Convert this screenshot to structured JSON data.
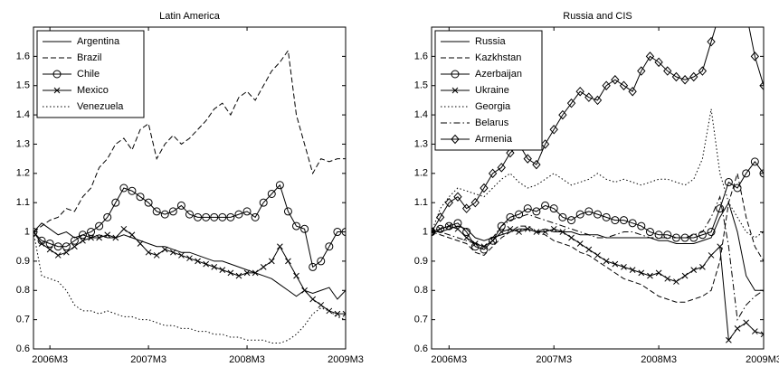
{
  "chart_data": [
    {
      "type": "line",
      "title": "Latin America",
      "categories": [
        null,
        null,
        "2006M3",
        null,
        null,
        null,
        null,
        null,
        null,
        null,
        null,
        null,
        null,
        null,
        "2007M3",
        null,
        null,
        null,
        null,
        null,
        null,
        null,
        null,
        null,
        null,
        null,
        "2008M3",
        null,
        null,
        null,
        null,
        null,
        null,
        null,
        null,
        null,
        null,
        null,
        "2009M3"
      ],
      "ylim": [
        0.6,
        1.7
      ],
      "yticks": [
        0.6,
        0.7,
        0.8,
        0.9,
        1,
        1.1,
        1.2,
        1.3,
        1.4,
        1.5,
        1.6
      ],
      "legend": "upper-left",
      "series": [
        {
          "name": "Argentina",
          "color": "#000000",
          "dash": "solid",
          "marker": "none",
          "values": [
            1.0,
            1.03,
            1.01,
            0.99,
            1.0,
            0.98,
            0.99,
            0.98,
            0.99,
            0.98,
            0.98,
            0.99,
            0.98,
            0.97,
            0.96,
            0.95,
            0.95,
            0.94,
            0.93,
            0.93,
            0.92,
            0.91,
            0.9,
            0.9,
            0.89,
            0.88,
            0.87,
            0.86,
            0.85,
            0.84,
            0.82,
            0.8,
            0.78,
            0.8,
            0.79,
            0.8,
            0.81,
            0.77,
            0.8
          ]
        },
        {
          "name": "Brazil",
          "color": "#000000",
          "dash": "dashed",
          "marker": "none",
          "values": [
            1.0,
            1.02,
            1.04,
            1.05,
            1.08,
            1.07,
            1.12,
            1.15,
            1.22,
            1.25,
            1.3,
            1.32,
            1.28,
            1.35,
            1.37,
            1.25,
            1.3,
            1.33,
            1.3,
            1.32,
            1.35,
            1.38,
            1.42,
            1.44,
            1.4,
            1.46,
            1.48,
            1.45,
            1.5,
            1.55,
            1.58,
            1.62,
            1.4,
            1.3,
            1.2,
            1.25,
            1.24,
            1.25,
            1.25
          ]
        },
        {
          "name": "Chile",
          "color": "#000000",
          "dash": "solid",
          "marker": "circle",
          "values": [
            1.0,
            0.97,
            0.96,
            0.95,
            0.95,
            0.97,
            0.99,
            1.0,
            1.02,
            1.05,
            1.1,
            1.15,
            1.14,
            1.12,
            1.1,
            1.07,
            1.06,
            1.07,
            1.09,
            1.06,
            1.05,
            1.05,
            1.05,
            1.05,
            1.05,
            1.06,
            1.07,
            1.05,
            1.1,
            1.13,
            1.16,
            1.07,
            1.02,
            1.01,
            0.88,
            0.9,
            0.95,
            1.0,
            1.0
          ]
        },
        {
          "name": "Mexico",
          "color": "#000000",
          "dash": "solid",
          "marker": "x",
          "values": [
            1.0,
            0.96,
            0.94,
            0.92,
            0.93,
            0.95,
            0.97,
            0.98,
            0.98,
            0.99,
            0.98,
            1.01,
            0.99,
            0.96,
            0.93,
            0.92,
            0.94,
            0.93,
            0.92,
            0.91,
            0.9,
            0.89,
            0.88,
            0.87,
            0.86,
            0.85,
            0.86,
            0.86,
            0.88,
            0.9,
            0.95,
            0.9,
            0.85,
            0.8,
            0.77,
            0.75,
            0.73,
            0.72,
            0.72
          ]
        },
        {
          "name": "Venezuela",
          "color": "#000000",
          "dash": "dotted",
          "marker": "none",
          "values": [
            1.0,
            0.85,
            0.84,
            0.83,
            0.8,
            0.75,
            0.73,
            0.73,
            0.72,
            0.73,
            0.72,
            0.71,
            0.71,
            0.7,
            0.7,
            0.69,
            0.68,
            0.68,
            0.67,
            0.67,
            0.66,
            0.66,
            0.65,
            0.65,
            0.64,
            0.64,
            0.63,
            0.63,
            0.63,
            0.62,
            0.62,
            0.63,
            0.65,
            0.68,
            0.72,
            0.74,
            0.73,
            0.71,
            0.7
          ]
        }
      ]
    },
    {
      "type": "line",
      "title": "Russia and CIS",
      "categories": [
        null,
        null,
        "2006M3",
        null,
        null,
        null,
        null,
        null,
        null,
        null,
        null,
        null,
        null,
        null,
        "2007M3",
        null,
        null,
        null,
        null,
        null,
        null,
        null,
        null,
        null,
        null,
        null,
        "2008M3",
        null,
        null,
        null,
        null,
        null,
        null,
        null,
        null,
        null,
        null,
        null,
        "2009M3"
      ],
      "ylim": [
        0.6,
        1.7
      ],
      "yticks": [
        0.6,
        0.7,
        0.8,
        0.9,
        1,
        1.1,
        1.2,
        1.3,
        1.4,
        1.5,
        1.6
      ],
      "legend": "upper-left",
      "series": [
        {
          "name": "Russia",
          "color": "#000000",
          "dash": "solid",
          "marker": "none",
          "values": [
            1.0,
            1.0,
            1.01,
            1.02,
            1.01,
            0.98,
            0.97,
            0.98,
            0.99,
            1.0,
            1.01,
            1.01,
            1.0,
            1.01,
            1.0,
            1.0,
            1.0,
            0.99,
            0.99,
            0.99,
            0.98,
            0.98,
            0.98,
            0.98,
            0.98,
            0.98,
            0.97,
            0.97,
            0.96,
            0.96,
            0.96,
            0.97,
            0.98,
            1.05,
            1.1,
            1.0,
            0.85,
            0.8,
            0.8
          ]
        },
        {
          "name": "Kazkhstan",
          "color": "#000000",
          "dash": "dashed",
          "marker": "none",
          "values": [
            1.0,
            0.99,
            0.98,
            0.97,
            0.96,
            0.93,
            0.92,
            0.95,
            0.98,
            1.0,
            1.02,
            1.02,
            1.0,
            0.99,
            0.97,
            0.96,
            0.95,
            0.93,
            0.92,
            0.9,
            0.88,
            0.86,
            0.84,
            0.83,
            0.82,
            0.8,
            0.78,
            0.77,
            0.76,
            0.76,
            0.77,
            0.78,
            0.8,
            0.9,
            1.1,
            1.2,
            1.05,
            0.95,
            0.9
          ]
        },
        {
          "name": "Azerbaijan",
          "color": "#000000",
          "dash": "solid",
          "marker": "circle",
          "values": [
            1.0,
            1.01,
            1.02,
            1.03,
            1.0,
            0.95,
            0.94,
            0.97,
            1.02,
            1.05,
            1.06,
            1.08,
            1.07,
            1.09,
            1.08,
            1.05,
            1.04,
            1.06,
            1.07,
            1.06,
            1.05,
            1.04,
            1.04,
            1.03,
            1.02,
            1.0,
            0.99,
            0.99,
            0.98,
            0.98,
            0.98,
            0.99,
            1.0,
            1.08,
            1.17,
            1.15,
            1.2,
            1.24,
            1.2
          ]
        },
        {
          "name": "Ukraine",
          "color": "#000000",
          "dash": "solid",
          "marker": "x",
          "values": [
            1.0,
            1.01,
            1.02,
            1.01,
            0.98,
            0.96,
            0.95,
            0.97,
            1.0,
            1.01,
            1.0,
            1.01,
            1.0,
            1.0,
            1.01,
            1.0,
            0.98,
            0.96,
            0.94,
            0.92,
            0.9,
            0.89,
            0.88,
            0.87,
            0.86,
            0.85,
            0.86,
            0.84,
            0.83,
            0.85,
            0.87,
            0.88,
            0.92,
            0.95,
            0.63,
            0.67,
            0.69,
            0.66,
            0.65
          ]
        },
        {
          "name": "Georgia",
          "color": "#000000",
          "dash": "dotted",
          "marker": "none",
          "values": [
            1.0,
            1.08,
            1.12,
            1.15,
            1.14,
            1.13,
            1.12,
            1.15,
            1.18,
            1.2,
            1.17,
            1.15,
            1.16,
            1.18,
            1.2,
            1.18,
            1.16,
            1.17,
            1.18,
            1.2,
            1.18,
            1.17,
            1.18,
            1.17,
            1.16,
            1.17,
            1.18,
            1.18,
            1.17,
            1.16,
            1.18,
            1.25,
            1.42,
            1.2,
            1.1,
            1.05,
            1.0,
            0.98,
            1.0
          ]
        },
        {
          "name": "Belarus",
          "color": "#000000",
          "dash": "dashdot",
          "marker": "none",
          "values": [
            1.0,
            1.0,
            0.99,
            0.98,
            0.97,
            0.96,
            0.95,
            0.98,
            1.02,
            1.04,
            1.05,
            1.06,
            1.05,
            1.04,
            1.03,
            1.02,
            1.01,
            1.0,
            0.99,
            0.98,
            0.98,
            0.99,
            1.0,
            1.0,
            0.99,
            0.98,
            0.98,
            0.98,
            0.98,
            0.98,
            0.99,
            1.0,
            1.05,
            1.12,
            0.95,
            0.7,
            0.75,
            0.78,
            0.8
          ]
        },
        {
          "name": "Armenia",
          "color": "#000000",
          "dash": "solid",
          "marker": "diamond",
          "values": [
            1.0,
            1.05,
            1.1,
            1.12,
            1.08,
            1.1,
            1.15,
            1.2,
            1.22,
            1.27,
            1.3,
            1.25,
            1.23,
            1.3,
            1.35,
            1.4,
            1.44,
            1.48,
            1.46,
            1.45,
            1.5,
            1.52,
            1.5,
            1.48,
            1.55,
            1.6,
            1.58,
            1.55,
            1.53,
            1.52,
            1.53,
            1.55,
            1.65,
            1.75,
            1.8,
            1.8,
            1.75,
            1.6,
            1.5
          ]
        }
      ]
    }
  ]
}
